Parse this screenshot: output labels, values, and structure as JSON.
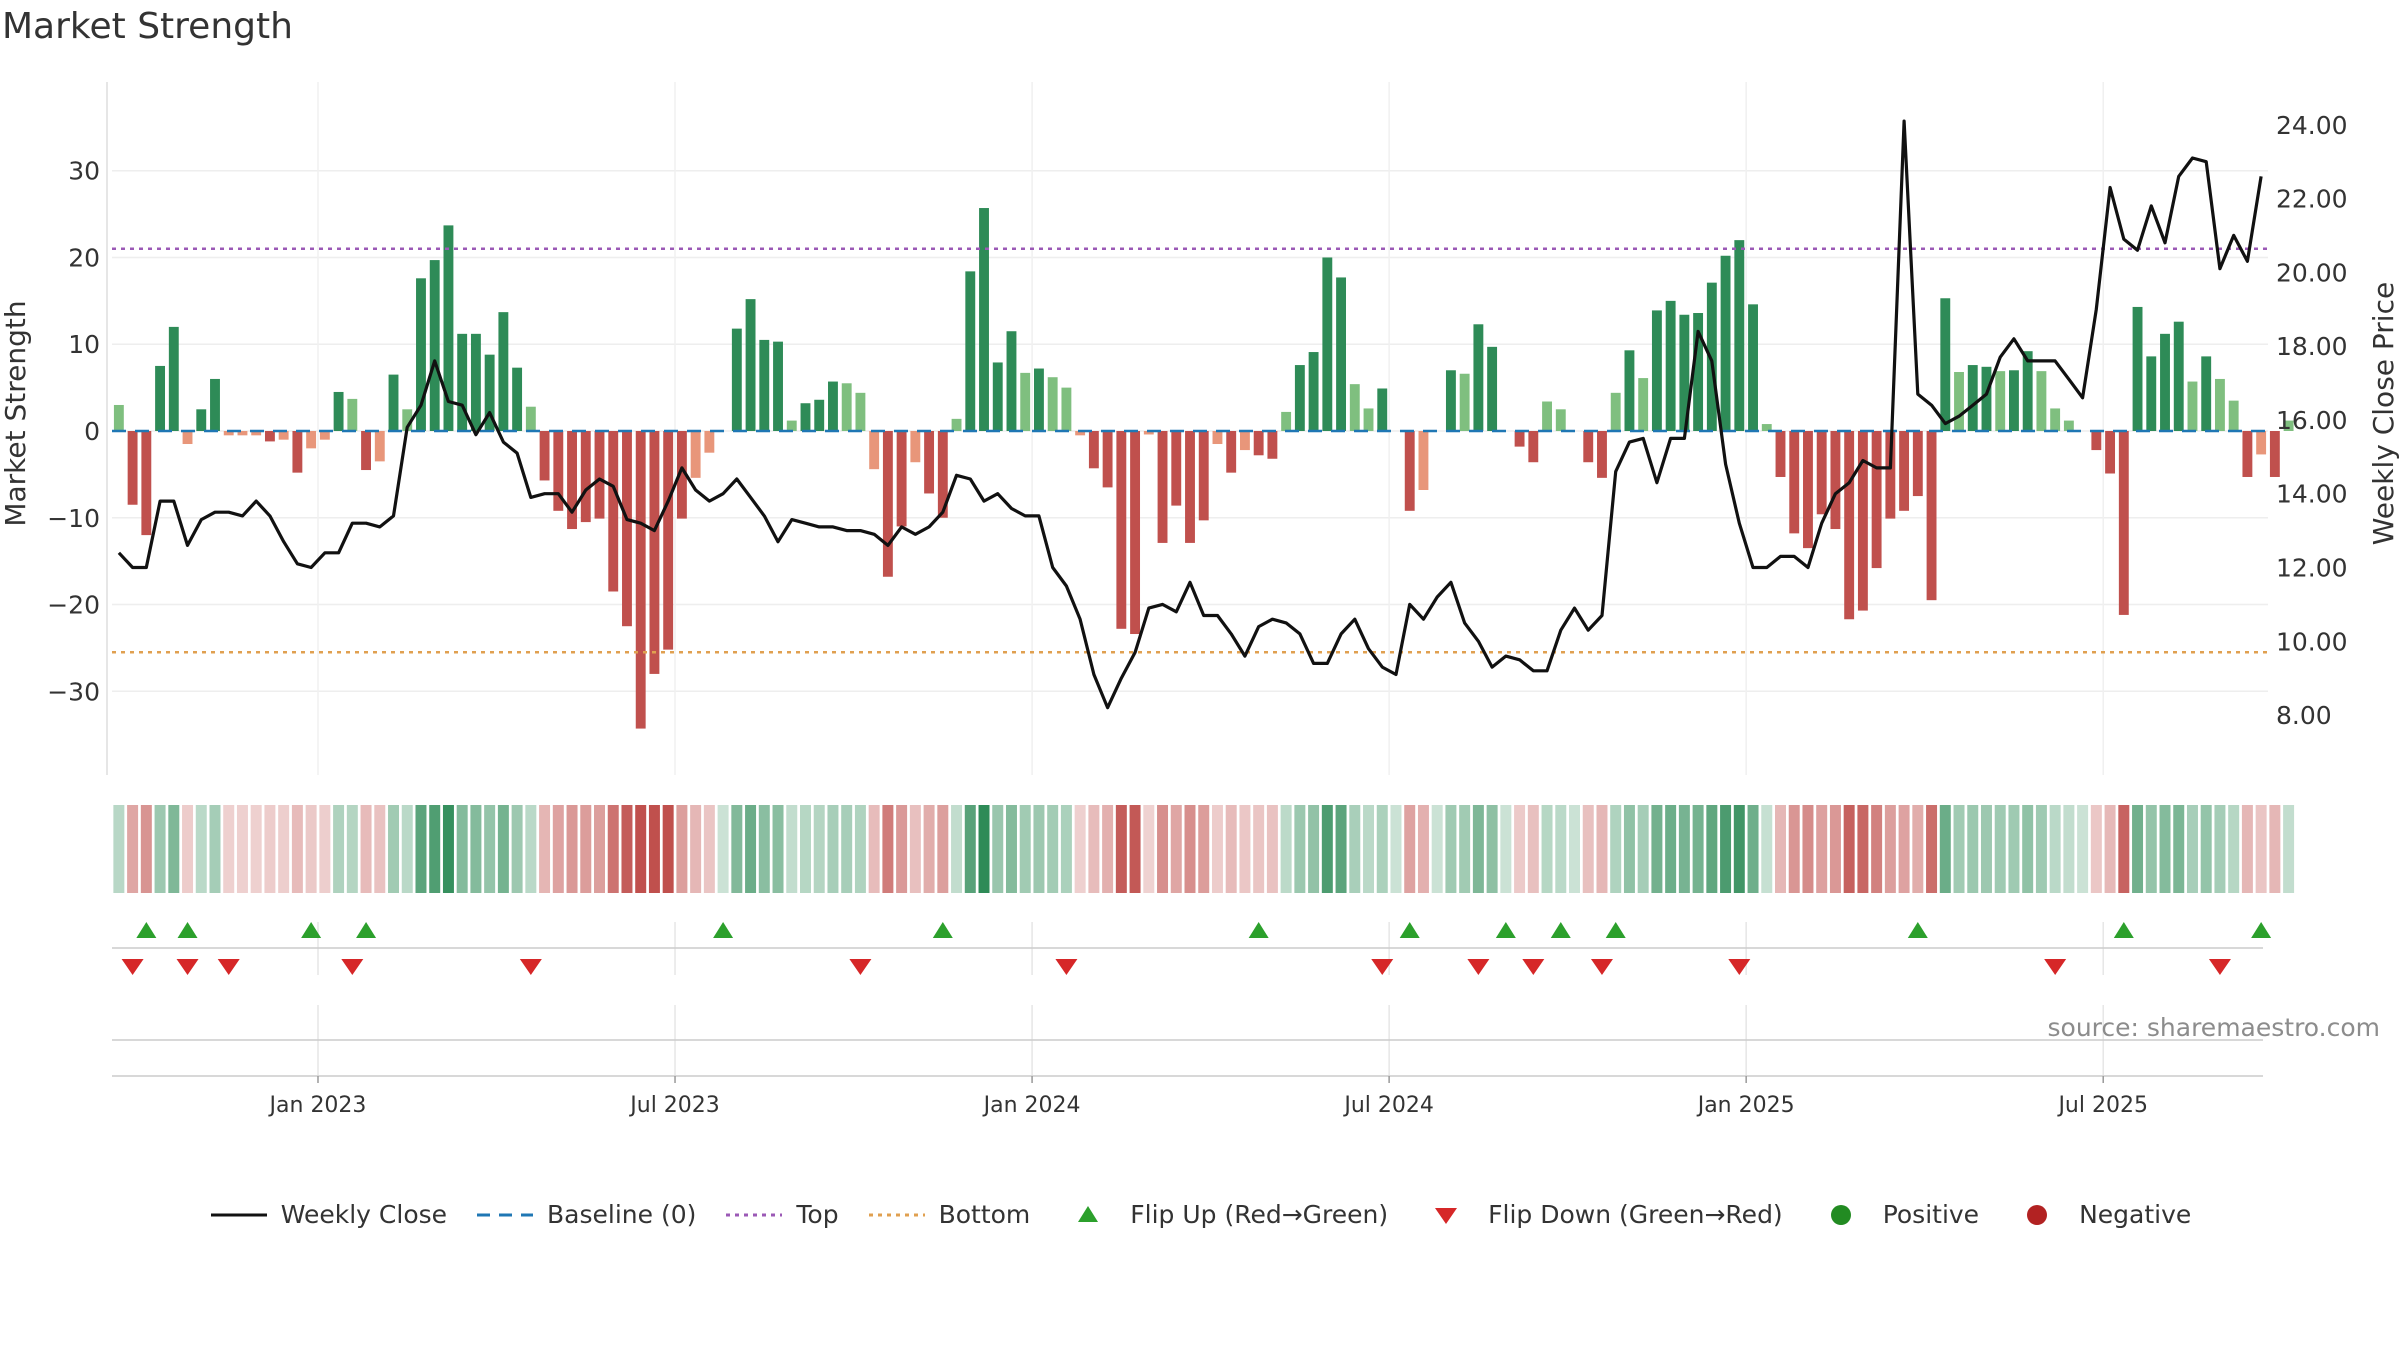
{
  "title": "Market Strength",
  "source": "source: sharemaestro.com",
  "colors": {
    "pos_dark": "#2e8b57",
    "pos_light": "#7fbf7f",
    "neg_dark": "#c0504d",
    "neg_light": "#e8967a",
    "close": "#111111",
    "baseline": "#1f77b4",
    "top": "#9b59b6",
    "bottom": "#e0a050",
    "flip_up": "#2ca02c",
    "flip_down": "#d62728",
    "positive": "#228b22",
    "negative": "#b22222"
  },
  "legend": [
    {
      "key": "close",
      "label": "Weekly Close",
      "icon": "line-solid-icon"
    },
    {
      "key": "baseline",
      "label": "Baseline (0)",
      "icon": "line-dashed-icon"
    },
    {
      "key": "top",
      "label": "Top",
      "icon": "line-dotted-icon"
    },
    {
      "key": "bottom",
      "label": "Bottom",
      "icon": "line-dotted-icon"
    },
    {
      "key": "flip_up",
      "label": "Flip Up (Red→Green)",
      "icon": "triangle-up-icon"
    },
    {
      "key": "flip_down",
      "label": "Flip Down (Green→Red)",
      "icon": "triangle-down-icon"
    },
    {
      "key": "positive",
      "label": "Positive",
      "icon": "circle-icon"
    },
    {
      "key": "negative",
      "label": "Negative",
      "icon": "circle-icon"
    }
  ],
  "chart_data": {
    "type": "bar",
    "title": "Market Strength",
    "xlabel": "",
    "ylabel": "Market Strength",
    "y2label": "Weekly Close Price",
    "ylim": [
      -37,
      37
    ],
    "y2lim": [
      7.0,
      24.4
    ],
    "yticks": [
      30,
      20,
      10,
      0,
      -10,
      -20,
      -30
    ],
    "ytick_labels": [
      "30",
      "20",
      "10",
      "0",
      "−10",
      "−20",
      "−30"
    ],
    "y2ticks": [
      24,
      22,
      20,
      18,
      16,
      14,
      12,
      10,
      8
    ],
    "y2tick_labels": [
      "24.00",
      "22.00",
      "20.00",
      "18.00",
      "16.00",
      "14.00",
      "12.00",
      "10.00",
      "8.00"
    ],
    "x_ticks": [
      {
        "week": 15,
        "label": "Jan 2023"
      },
      {
        "week": 41,
        "label": "Jul 2023"
      },
      {
        "week": 67,
        "label": "Jan 2024"
      },
      {
        "week": 93,
        "label": "Jul 2024"
      },
      {
        "week": 119,
        "label": "Jan 2025"
      },
      {
        "week": 145,
        "label": "Jul 2025"
      }
    ],
    "top_line": 21,
    "bottom_line": -25.5,
    "baseline": 0,
    "strength": [
      3,
      -8.5,
      -12,
      7.5,
      12,
      -1.5,
      2.5,
      6,
      -0.5,
      -0.5,
      -0.5,
      -1.2,
      -1,
      -4.8,
      -2,
      -1,
      4.5,
      3.7,
      -4.5,
      -3.5,
      6.5,
      2.5,
      17.6,
      19.7,
      23.7,
      11.2,
      11.2,
      8.8,
      13.7,
      7.3,
      2.8,
      -5.7,
      -9.2,
      -11.3,
      -10.5,
      -10.1,
      -18.5,
      -22.5,
      -34.3,
      -28,
      -25.2,
      -10.1,
      -5.4,
      -2.5,
      0,
      11.8,
      15.2,
      10.5,
      10.3,
      1.2,
      3.2,
      3.6,
      5.7,
      5.5,
      4.4,
      -4.4,
      -16.8,
      -11,
      -3.6,
      -7.2,
      -10,
      1.4,
      18.4,
      25.7,
      7.9,
      11.5,
      6.7,
      7.2,
      6.2,
      5,
      -0.5,
      -4.3,
      -6.5,
      -22.8,
      -23.4,
      -0.4,
      -12.9,
      -8.6,
      -12.9,
      -10.3,
      -1.5,
      -4.8,
      -2.2,
      -2.8,
      -3.2,
      2.2,
      7.6,
      9.1,
      20,
      17.7,
      5.4,
      2.6,
      4.9,
      0,
      -9.2,
      -6.8,
      0,
      7,
      6.6,
      12.3,
      9.7,
      0,
      -1.8,
      -3.6,
      3.4,
      2.5,
      0,
      -3.6,
      -5.4,
      4.4,
      9.3,
      6.1,
      13.9,
      15,
      13.4,
      13.6,
      17.1,
      20.2,
      22,
      14.6,
      0.8,
      -5.3,
      -11.8,
      -13.5,
      -9.6,
      -11.3,
      -21.7,
      -20.7,
      -15.8,
      -10.1,
      -9.2,
      -7.5,
      -19.5,
      15.3,
      6.8,
      7.6,
      7.4,
      6.9,
      7,
      9.2,
      6.9,
      2.6,
      1.2,
      0,
      -2.2,
      -4.9,
      -21.2,
      14.3,
      8.6,
      11.2,
      12.6,
      5.7,
      8.6,
      6,
      3.5,
      -5.3,
      -2.7,
      -5.3,
      1.2
    ],
    "weekly_close": [
      12.4,
      12.0,
      12.0,
      13.8,
      13.8,
      12.6,
      13.3,
      13.5,
      13.5,
      13.4,
      13.8,
      13.4,
      12.7,
      12.1,
      12.0,
      12.4,
      12.4,
      13.2,
      13.2,
      13.1,
      13.4,
      15.8,
      16.4,
      17.6,
      16.5,
      16.4,
      15.6,
      16.2,
      15.4,
      15.1,
      13.9,
      14.0,
      14.0,
      13.5,
      14.1,
      14.4,
      14.2,
      13.3,
      13.2,
      13.0,
      13.8,
      14.7,
      14.1,
      13.8,
      14.0,
      14.4,
      13.9,
      13.4,
      12.7,
      13.3,
      13.2,
      13.1,
      13.1,
      13.0,
      13.0,
      12.9,
      12.6,
      13.1,
      12.9,
      13.1,
      13.5,
      14.5,
      14.4,
      13.8,
      14.0,
      13.6,
      13.4,
      13.4,
      12.0,
      11.5,
      10.6,
      9.1,
      8.2,
      9.0,
      9.7,
      10.9,
      11.0,
      10.8,
      11.6,
      10.7,
      10.7,
      10.2,
      9.6,
      10.4,
      10.6,
      10.5,
      10.2,
      9.4,
      9.4,
      10.2,
      10.6,
      9.8,
      9.3,
      9.1,
      11.0,
      10.6,
      11.2,
      11.6,
      10.5,
      10.0,
      9.3,
      9.6,
      9.5,
      9.2,
      9.2,
      10.3,
      10.9,
      10.3,
      10.7,
      14.6,
      15.4,
      15.5,
      14.3,
      15.5,
      15.5,
      18.4,
      17.6,
      14.8,
      13.2,
      12.0,
      12.0,
      12.3,
      12.3,
      12.0,
      13.2,
      14.0,
      14.3,
      14.9,
      14.7,
      14.7,
      24.1,
      16.7,
      16.4,
      15.9,
      16.1,
      16.4,
      16.7,
      17.7,
      18.2,
      17.6,
      17.6,
      17.6,
      17.1,
      16.6,
      19.0,
      22.3,
      20.9,
      20.6,
      21.8,
      20.8,
      22.6,
      23.1,
      23.0,
      20.1,
      21.0,
      20.3,
      22.6
    ],
    "flip_up_weeks": [
      2,
      5,
      14,
      18,
      44,
      60,
      83,
      94,
      101,
      105,
      109,
      131,
      146,
      156
    ],
    "flip_down_weeks": [
      1,
      5,
      8,
      17,
      30,
      54,
      69,
      92,
      99,
      103,
      108,
      118,
      141,
      153
    ],
    "n_weeks": 157
  }
}
